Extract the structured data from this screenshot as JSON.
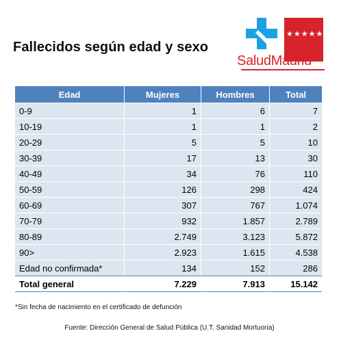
{
  "title": "Fallecidos según edad y sexo",
  "logo": {
    "text": "SaludMadrid",
    "stars": "★★★★★★★",
    "brand_red": "#d8232a",
    "brand_blue": "#1da1e2"
  },
  "table": {
    "header_color": "#4f81bd",
    "row_color": "#dce6f1",
    "columns": [
      "Edad",
      "Mujeres",
      "Hombres",
      "Total"
    ],
    "rows": [
      {
        "edad": "0-9",
        "mujeres": "1",
        "hombres": "6",
        "total": "7"
      },
      {
        "edad": "10-19",
        "mujeres": "1",
        "hombres": "1",
        "total": "2"
      },
      {
        "edad": "20-29",
        "mujeres": "5",
        "hombres": "5",
        "total": "10"
      },
      {
        "edad": "30-39",
        "mujeres": "17",
        "hombres": "13",
        "total": "30"
      },
      {
        "edad": "40-49",
        "mujeres": "34",
        "hombres": "76",
        "total": "110"
      },
      {
        "edad": "50-59",
        "mujeres": "126",
        "hombres": "298",
        "total": "424"
      },
      {
        "edad": "60-69",
        "mujeres": "307",
        "hombres": "767",
        "total": "1.074"
      },
      {
        "edad": "70-79",
        "mujeres": "932",
        "hombres": "1.857",
        "total": "2.789"
      },
      {
        "edad": "80-89",
        "mujeres": "2.749",
        "hombres": "3.123",
        "total": "5.872"
      },
      {
        "edad": "90>",
        "mujeres": "2.923",
        "hombres": "1.615",
        "total": "4.538"
      },
      {
        "edad": "Edad no confirmada*",
        "mujeres": "134",
        "hombres": "152",
        "total": "286"
      }
    ],
    "total_row": {
      "edad": "Total general",
      "mujeres": "7.229",
      "hombres": "7.913",
      "total": "15.142"
    }
  },
  "footnote": "*Sin fecha de nacimiento en el certificado de defunción",
  "source": "Fuente: Dirección General de Salud Pública (U.T. Sanidad Mortuoria)"
}
